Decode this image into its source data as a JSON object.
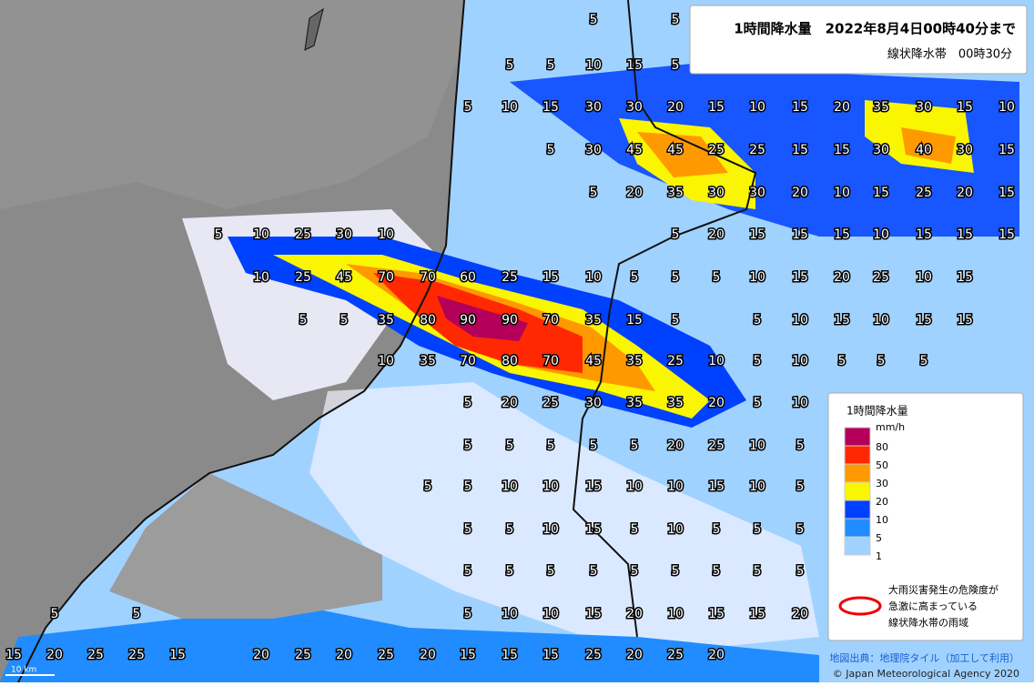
{
  "header": {
    "title": "1時間降水量　2022年8月4日00時40分まで",
    "subtitle": "線状降水帯　00時30分"
  },
  "legend": {
    "title": "1時間降水量",
    "unit": "mm/h",
    "levels": [
      {
        "label": "80",
        "color": "#b4005a"
      },
      {
        "label": "50",
        "color": "#ff2800"
      },
      {
        "label": "30",
        "color": "#ff9900"
      },
      {
        "label": "20",
        "color": "#faf500"
      },
      {
        "label": "10",
        "color": "#0041ff"
      },
      {
        "label": "5",
        "color": "#218cff"
      },
      {
        "label": "1",
        "color": "#a0d2ff"
      }
    ],
    "band_note": [
      "大雨災害発生の危険度が",
      "急激に高まっている",
      "線状降水帯の雨域"
    ]
  },
  "map_labels": {
    "rows": [
      [
        5,
        5
      ],
      [
        5,
        5,
        10,
        15,
        5
      ],
      [
        5,
        10,
        15,
        30,
        30,
        20,
        15,
        10,
        15,
        20,
        35,
        30,
        15,
        10
      ],
      [
        5,
        30,
        45,
        45,
        25,
        25,
        15,
        15,
        30,
        40,
        30,
        15
      ],
      [
        5,
        20,
        35,
        30,
        30,
        20,
        10,
        15,
        25,
        20,
        15
      ],
      [
        5,
        10,
        25,
        30,
        10,
        5,
        20,
        15,
        15,
        15,
        10,
        15,
        15,
        15
      ],
      [
        10,
        25,
        45,
        70,
        70,
        60,
        25,
        15,
        10,
        5,
        5,
        5,
        10,
        15,
        20,
        25,
        10,
        15
      ],
      [
        5,
        5,
        35,
        80,
        90,
        90,
        70,
        35,
        15,
        5,
        5,
        10,
        15,
        10,
        15,
        15
      ],
      [
        10,
        35,
        70,
        80,
        70,
        45,
        35,
        25,
        10,
        5,
        10,
        5,
        5,
        5
      ],
      [
        5,
        20,
        25,
        30,
        35,
        35,
        20,
        5,
        10
      ],
      [
        5,
        5,
        5,
        5,
        5,
        20,
        25,
        10,
        5
      ],
      [
        5,
        5,
        10,
        10,
        15,
        10,
        10,
        15,
        10,
        5
      ],
      [
        5,
        5,
        10,
        15,
        5,
        10,
        5,
        5,
        5
      ],
      [
        5,
        5,
        5,
        5,
        5,
        5,
        5,
        5,
        5
      ],
      [
        5,
        5,
        5,
        10,
        10,
        15,
        20,
        10,
        15,
        15,
        20
      ],
      [
        15,
        20,
        25,
        25,
        15,
        20,
        25,
        20,
        25,
        20,
        15,
        15,
        15,
        25,
        20,
        25,
        20
      ]
    ]
  },
  "footer": {
    "scale": "10 km",
    "source": "地図出典：地理院タイル（加工して利用）",
    "copyright": "© Japan Meteorological Agency 2020"
  }
}
